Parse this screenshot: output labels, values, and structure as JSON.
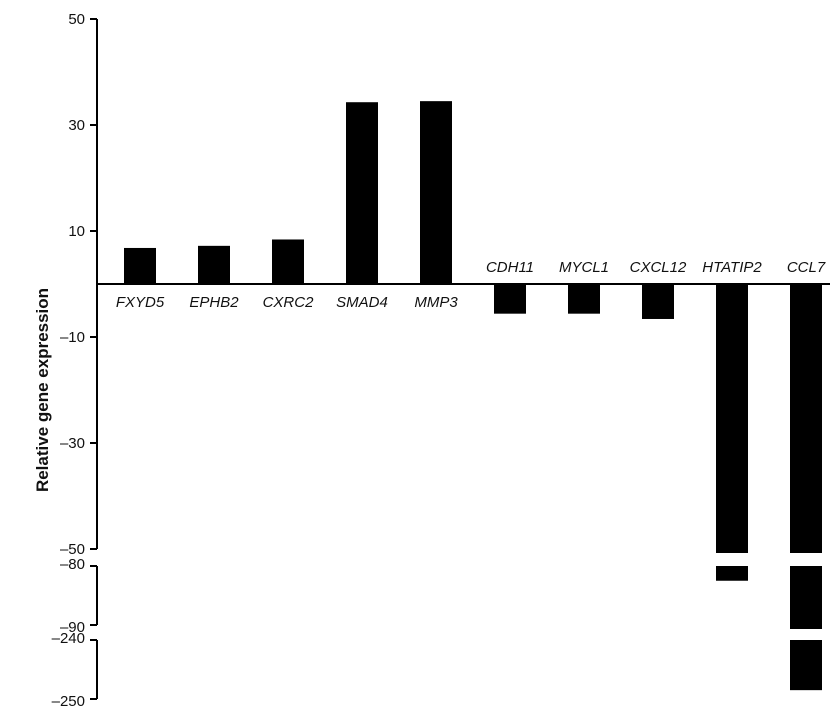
{
  "chart_data": {
    "type": "bar",
    "ylabel": "Relative gene expression",
    "xlabel": "",
    "title": "",
    "axis_breaks": [
      [
        -80,
        -50
      ],
      [
        -240,
        -90
      ]
    ],
    "y_segments": [
      {
        "range": [
          -50,
          50
        ],
        "ticks": [
          50,
          30,
          10,
          -10,
          -30,
          -50
        ]
      },
      {
        "range": [
          -90,
          -80
        ],
        "ticks": [
          -80,
          -90
        ]
      },
      {
        "range": [
          -250,
          -240
        ],
        "ticks": [
          -240,
          -250
        ]
      }
    ],
    "tick_labels": {
      "50": "50",
      "30": "30",
      "10": "10",
      "-10": "–10",
      "-30": "–30",
      "-50": "–50",
      "-80": "–80",
      "-90": "–90",
      "-240": "–240",
      "-250": "–250"
    },
    "categories": [
      "FXYD5",
      "EPHB2",
      "CXRC2",
      "SMAD4",
      "MMP3",
      "CDH11",
      "MYCL1",
      "CXCL12",
      "HTATIP2",
      "CCL7"
    ],
    "values": [
      6.8,
      7.2,
      8.4,
      34.3,
      34.5,
      -5.6,
      -5.6,
      -6.6,
      -82.5,
      -248.5
    ],
    "grid": false,
    "bar_color": "#000000"
  }
}
